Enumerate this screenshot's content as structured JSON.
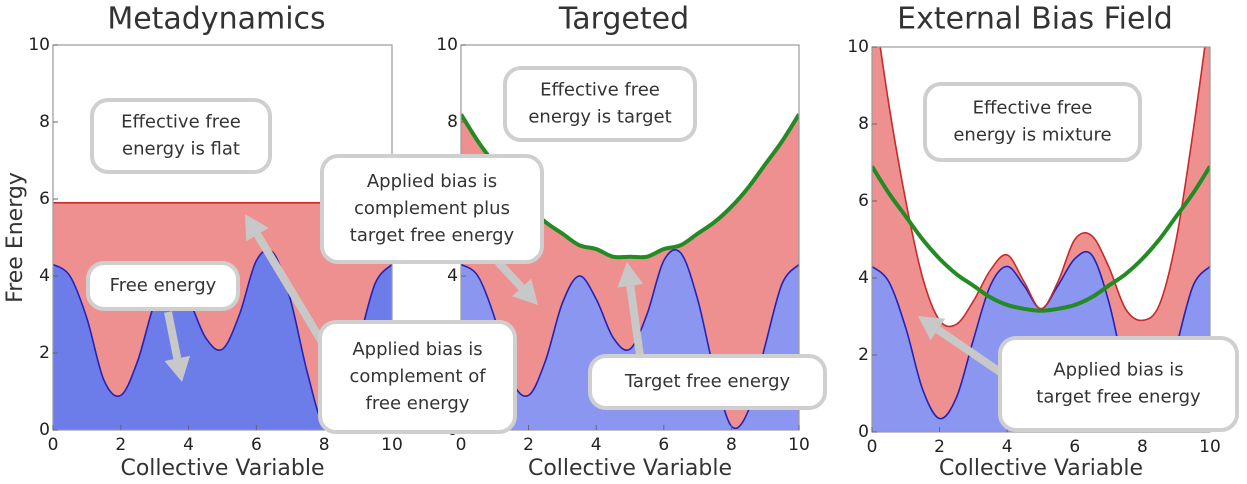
{
  "chart_data": [
    {
      "type": "area",
      "title": "Metadynamics",
      "xlabel": "Collective Variable",
      "ylabel": "Free Energy",
      "x": [
        0,
        0.5,
        1,
        1.5,
        2,
        2.5,
        3,
        3.5,
        4,
        4.5,
        5,
        5.5,
        6,
        6.5,
        7,
        7.5,
        8,
        8.5,
        9,
        9.5,
        10
      ],
      "series": [
        {
          "color": "#6c7ce8",
          "line_color": "#2323b8",
          "values": [
            4.3,
            4.0,
            2.9,
            1.3,
            0.9,
            1.8,
            3.3,
            4.0,
            3.4,
            2.4,
            2.1,
            3.0,
            4.4,
            4.6,
            3.4,
            1.5,
            0.1,
            0.5,
            2.2,
            3.8,
            4.3
          ]
        },
        {
          "color": "#ee9090",
          "line_color": "#c92a2a",
          "values": [
            1.6,
            1.9,
            3.0,
            4.6,
            5.0,
            4.1,
            2.6,
            1.9,
            2.5,
            3.5,
            3.8,
            2.9,
            1.5,
            1.3,
            2.5,
            4.4,
            5.8,
            5.4,
            3.7,
            2.1,
            1.6
          ]
        }
      ],
      "xlim": [
        0,
        10
      ],
      "ylim": [
        0,
        10
      ],
      "xticks": [
        0,
        2,
        4,
        6,
        8,
        10
      ],
      "yticks": [
        0,
        2,
        4,
        6,
        8,
        10
      ],
      "annotations": [
        [
          "Effective free",
          "energy is flat"
        ],
        [
          "Free energy"
        ],
        [
          "Applied bias is",
          "complement of",
          "free energy"
        ]
      ]
    },
    {
      "type": "area",
      "title": "Targeted",
      "xlabel": "Collective Variable",
      "x": [
        0,
        0.5,
        1,
        1.5,
        2,
        2.5,
        3,
        3.5,
        4,
        4.5,
        5,
        5.5,
        6,
        6.5,
        7,
        7.5,
        8,
        8.5,
        9,
        9.5,
        10
      ],
      "series": [
        {
          "color": "#8a96f0",
          "line_color": "#2323b8",
          "values": [
            4.3,
            4.0,
            2.9,
            1.3,
            0.9,
            1.8,
            3.3,
            4.0,
            3.4,
            2.4,
            2.1,
            3.0,
            4.4,
            4.6,
            3.4,
            1.5,
            0.1,
            0.5,
            2.2,
            3.8,
            4.3
          ]
        },
        {
          "color": "#ee9090",
          "line_color": "#c92a2a",
          "values": [
            3.9,
            3.5,
            4.0,
            5.0,
            4.9,
            3.6,
            1.8,
            0.8,
            1.3,
            2.1,
            2.4,
            1.5,
            0.3,
            0.2,
            1.7,
            3.9,
            5.7,
            5.8,
            4.7,
            3.7,
            3.9
          ]
        },
        {
          "type": "line",
          "color": "#228b22",
          "values": [
            8.2,
            7.5,
            6.9,
            6.3,
            5.8,
            5.4,
            5.1,
            4.8,
            4.7,
            4.5,
            4.5,
            4.5,
            4.7,
            4.8,
            5.1,
            5.4,
            5.8,
            6.3,
            6.9,
            7.5,
            8.2
          ]
        }
      ],
      "xlim": [
        0,
        10
      ],
      "ylim": [
        0,
        10
      ],
      "xticks": [
        0,
        2,
        4,
        6,
        8,
        10
      ],
      "yticks": [
        0,
        2,
        4,
        6,
        8,
        10
      ],
      "annotations": [
        [
          "Applied bias is",
          "complement plus",
          "target free energy"
        ],
        [
          "Effective free",
          "energy is target"
        ],
        [
          "Target free energy"
        ]
      ]
    },
    {
      "type": "area",
      "title": "External Bias Field",
      "xlabel": "Collective Variable",
      "x": [
        0,
        0.5,
        1,
        1.5,
        2,
        2.5,
        3,
        3.5,
        4,
        4.5,
        5,
        5.5,
        6,
        6.5,
        7,
        7.5,
        8,
        8.5,
        9,
        9.5,
        10
      ],
      "series": [
        {
          "color": "#8a96f0",
          "line_color": "#2323b8",
          "values": [
            4.3,
            3.9,
            2.7,
            1.1,
            0.35,
            0.9,
            2.4,
            3.8,
            4.3,
            3.8,
            3.2,
            3.8,
            4.5,
            4.6,
            3.4,
            1.5,
            0.1,
            0.5,
            2.2,
            3.8,
            4.3
          ]
        },
        {
          "color": "#ee9090",
          "line_color": "#c92a2a",
          "values": [
            7.2,
            4.6,
            3.3,
            2.9,
            2.55,
            1.9,
            1.0,
            0.4,
            0.3,
            0.1,
            0.0,
            0.1,
            0.5,
            0.5,
            0.9,
            1.7,
            2.8,
            2.8,
            2.8,
            4.0,
            6.7
          ]
        },
        {
          "type": "line",
          "color": "#228b22",
          "values": [
            6.9,
            6.2,
            5.6,
            5.0,
            4.5,
            4.1,
            3.8,
            3.5,
            3.3,
            3.2,
            3.15,
            3.2,
            3.3,
            3.5,
            3.8,
            4.1,
            4.5,
            5.0,
            5.6,
            6.2,
            6.9
          ]
        }
      ],
      "xlim": [
        0,
        10
      ],
      "ylim": [
        0,
        10
      ],
      "xticks": [
        0,
        2,
        4,
        6,
        8,
        10
      ],
      "yticks": [
        0,
        2,
        4,
        6,
        8,
        10
      ],
      "annotations": [
        [
          "Effective free",
          "energy is mixture"
        ],
        [
          "Applied bias is",
          "target free energy"
        ]
      ]
    }
  ]
}
